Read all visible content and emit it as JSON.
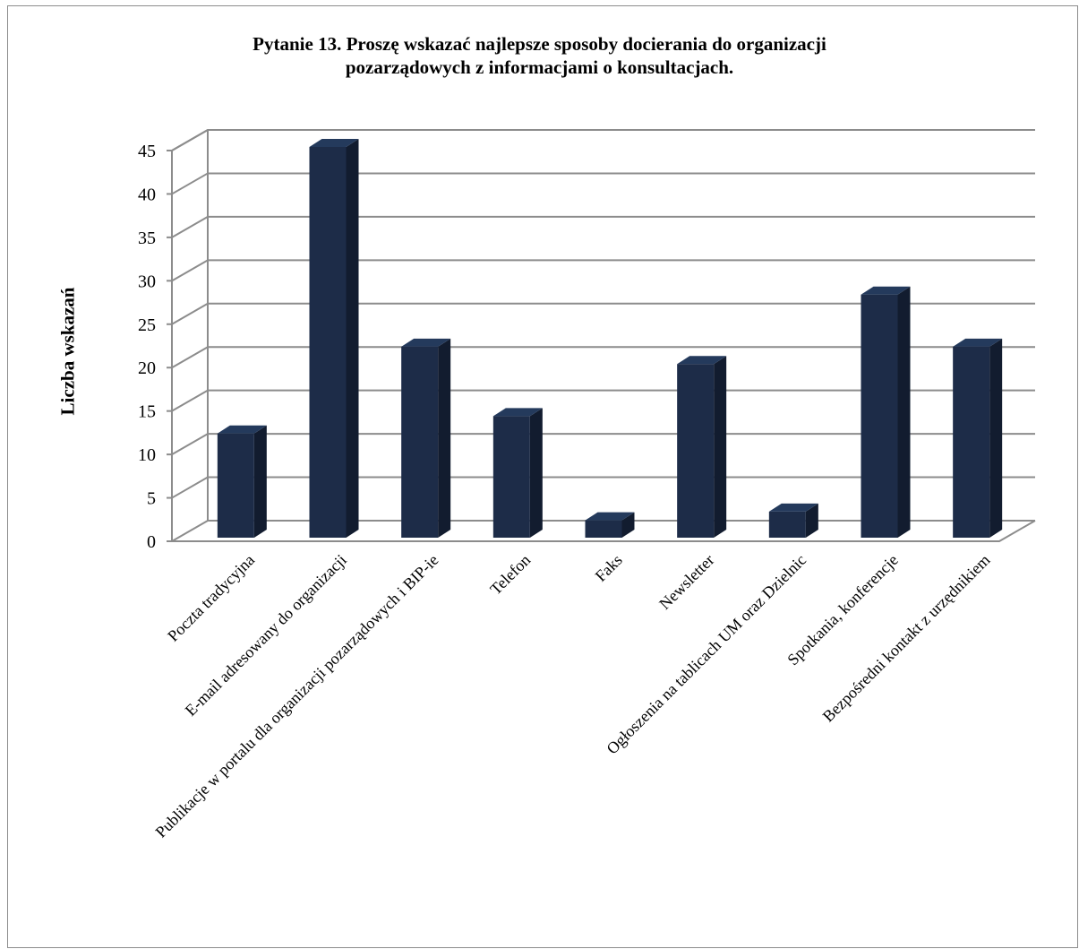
{
  "chart_data": {
    "type": "bar",
    "title_lines": [
      "Pytanie 13. Proszę wskazać najlepsze sposoby docierania do organizacji",
      "pozarządowych z informacjami o konsultacjach."
    ],
    "ylabel": "Liczba wskazań",
    "xlabel": "",
    "ylim": [
      0,
      45
    ],
    "yticks": [
      0,
      5,
      10,
      15,
      20,
      25,
      30,
      35,
      40,
      45
    ],
    "grid": true,
    "bar_color": "#1d2c48",
    "categories": [
      "Poczta tradycyjna",
      "E-mail adresowany do organizacji",
      "Publikacje w portalu dla organizacji pozarządowych i BIP-ie",
      "Telefon",
      "Faks",
      "Newsletter",
      "Ogłoszenia na tablicach UM oraz Dzielnic",
      "Spotkania, konferencje",
      "Bezpośredni kontakt z urzędnikiem"
    ],
    "values": [
      12,
      45,
      22,
      14,
      2,
      20,
      3,
      28,
      22
    ]
  }
}
